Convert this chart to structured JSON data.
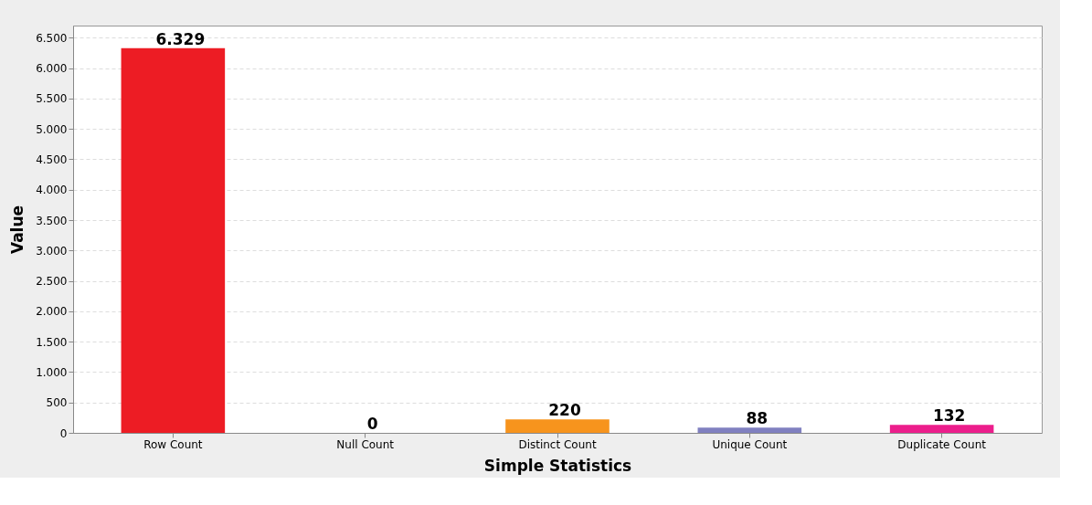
{
  "chart_data": {
    "type": "bar",
    "xlabel": "Simple Statistics",
    "ylabel": "Value",
    "categories": [
      "Row Count",
      "Null Count",
      "Distinct Count",
      "Unique Count",
      "Duplicate Count"
    ],
    "values": [
      6329,
      0,
      220,
      88,
      132
    ],
    "colors": [
      "#ed1c24",
      "#3366cc",
      "#f7941d",
      "#8080c0",
      "#ec1e8c"
    ],
    "value_labels": [
      "6.329",
      "0",
      "220",
      "88",
      "132"
    ],
    "ylim": [
      0,
      6700
    ],
    "yticks": [
      0,
      500,
      {
        "value": 1000,
        "label": "1.000"
      },
      {
        "value": 1500,
        "label": "1.500"
      },
      {
        "value": 2000,
        "label": "2.000"
      },
      {
        "value": 2500,
        "label": "2.500"
      },
      {
        "value": 3000,
        "label": "3.000"
      },
      {
        "value": 3500,
        "label": "3.500"
      },
      {
        "value": 4000,
        "label": "4.000"
      },
      {
        "value": 4500,
        "label": "4.500"
      },
      {
        "value": 5000,
        "label": "5.000"
      },
      {
        "value": 5500,
        "label": "5.500"
      },
      {
        "value": 6000,
        "label": "6.000"
      },
      {
        "value": 6500,
        "label": "6.500"
      }
    ],
    "grid": "y"
  }
}
